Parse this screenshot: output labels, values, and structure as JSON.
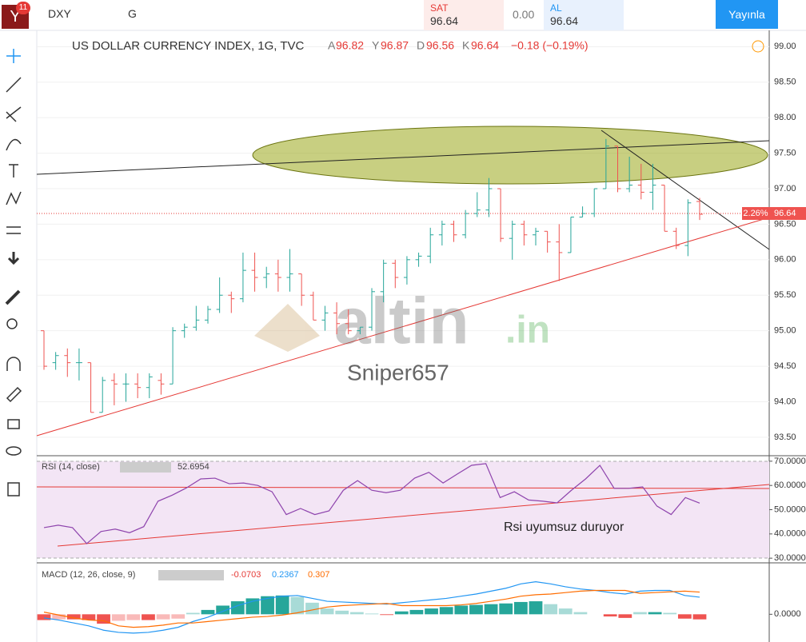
{
  "toolbar": {
    "badge": "11",
    "symbol": "DXY",
    "interval": "G",
    "sell_label": "SAT",
    "sell_price": "96.64",
    "spread": "0.00",
    "buy_label": "AL",
    "buy_price": "96.64",
    "publish": "Yayınla"
  },
  "legend": {
    "title": "US DOLLAR CURRENCY INDEX, 1G, TVC",
    "open_label": "A",
    "high_label": "Y",
    "low_label": "D",
    "close_label": "K",
    "change": "−0.18 (−0.19%)",
    "price_change_badge": "2.26%",
    "rsi_title": "RSI (14, close)",
    "macd_title": "MACD (12, 26, close, 9)"
  },
  "annotations": {
    "author": "Sniper657",
    "rsi_note": "Rsi uyumsuz duruyor",
    "watermark": "altin",
    "watermark_suffix": ".in"
  },
  "chart_data": [
    {
      "type": "ohlc",
      "up_color": "#26a69a",
      "down_color": "#ef5350",
      "ohlc": [
        [
          95.0,
          95.0,
          94.45,
          94.5
        ],
        [
          94.55,
          94.7,
          94.45,
          94.65
        ],
        [
          94.65,
          94.75,
          94.35,
          94.55
        ],
        [
          94.55,
          94.75,
          94.3,
          94.55
        ],
        [
          94.55,
          94.55,
          93.85,
          93.85
        ],
        [
          93.85,
          94.35,
          93.85,
          94.3
        ],
        [
          94.3,
          94.4,
          93.95,
          94.25
        ],
        [
          94.25,
          94.4,
          94.0,
          94.25
        ],
        [
          94.25,
          94.4,
          94.05,
          94.2
        ],
        [
          94.2,
          94.4,
          94.05,
          94.35
        ],
        [
          94.3,
          94.4,
          94.1,
          94.25
        ],
        [
          94.25,
          95.05,
          94.25,
          95.0
        ],
        [
          95.0,
          95.1,
          94.9,
          95.05
        ],
        [
          95.05,
          95.35,
          95.0,
          95.15
        ],
        [
          95.15,
          95.35,
          95.1,
          95.3
        ],
        [
          95.3,
          95.75,
          95.25,
          95.5
        ],
        [
          95.5,
          95.55,
          95.25,
          95.45
        ],
        [
          95.45,
          96.1,
          95.4,
          95.85
        ],
        [
          95.85,
          96.1,
          95.55,
          95.75
        ],
        [
          95.75,
          95.9,
          95.6,
          95.8
        ],
        [
          95.8,
          96.0,
          95.55,
          95.75
        ],
        [
          95.75,
          96.15,
          95.55,
          95.8
        ],
        [
          95.8,
          95.8,
          95.35,
          95.5
        ],
        [
          95.5,
          95.55,
          95.15,
          95.15
        ],
        [
          95.15,
          95.35,
          95.0,
          95.25
        ],
        [
          95.25,
          95.4,
          94.95,
          95.1
        ],
        [
          95.1,
          95.3,
          94.95,
          95.0
        ],
        [
          95.0,
          95.05,
          94.95,
          95.05
        ],
        [
          95.05,
          95.6,
          95.0,
          95.55
        ],
        [
          95.55,
          96.0,
          95.4,
          95.95
        ],
        [
          95.95,
          96.0,
          95.6,
          95.75
        ],
        [
          95.75,
          96.05,
          95.65,
          96.0
        ],
        [
          96.0,
          96.1,
          95.9,
          96.05
        ],
        [
          96.05,
          96.45,
          95.95,
          96.35
        ],
        [
          96.35,
          96.55,
          96.2,
          96.5
        ],
        [
          96.5,
          96.55,
          96.25,
          96.35
        ],
        [
          96.35,
          96.7,
          96.3,
          96.65
        ],
        [
          96.65,
          96.95,
          96.6,
          96.7
        ],
        [
          96.7,
          97.15,
          96.6,
          97.0
        ],
        [
          97.0,
          97.0,
          96.25,
          96.3
        ],
        [
          96.3,
          96.55,
          96.0,
          96.5
        ],
        [
          96.5,
          96.55,
          96.2,
          96.35
        ],
        [
          96.35,
          96.45,
          96.2,
          96.4
        ],
        [
          96.4,
          96.4,
          96.1,
          96.25
        ],
        [
          96.25,
          96.5,
          95.7,
          96.1
        ],
        [
          96.1,
          96.6,
          96.1,
          96.6
        ],
        [
          96.6,
          96.75,
          96.6,
          96.65
        ],
        [
          96.65,
          97.0,
          96.6,
          97.0
        ],
        [
          97.0,
          97.7,
          97.0,
          97.6
        ],
        [
          97.6,
          97.6,
          96.95,
          97.0
        ],
        [
          97.0,
          97.45,
          96.95,
          97.05
        ],
        [
          97.05,
          97.35,
          96.85,
          96.95
        ],
        [
          96.95,
          97.35,
          96.7,
          97.05
        ],
        [
          97.05,
          97.05,
          96.4,
          96.4
        ],
        [
          96.4,
          96.45,
          96.15,
          96.2
        ],
        [
          96.2,
          96.85,
          96.05,
          96.8
        ],
        [
          96.82,
          96.87,
          96.56,
          96.64
        ]
      ],
      "ylim": [
        93.24,
        99.15
      ],
      "yticks": [
        {
          "value": 93.5,
          "label": "93.50"
        },
        {
          "value": 94,
          "label": "94.00"
        },
        {
          "value": 94.5,
          "label": "94.50"
        },
        {
          "value": 95,
          "label": "95.00"
        },
        {
          "value": 95.5,
          "label": "95.50"
        },
        {
          "value": 96,
          "label": "96.00"
        },
        {
          "value": 96.5,
          "label": "96.50"
        },
        {
          "value": 97,
          "label": "97.00"
        },
        {
          "value": 97.5,
          "label": "97.50"
        },
        {
          "value": 98,
          "label": "98.00"
        },
        {
          "value": 98.5,
          "label": "98.50"
        },
        {
          "value": 99,
          "label": "99.00"
        }
      ],
      "grid": true
    },
    {
      "type": "line",
      "color": "#8e44ad",
      "values": [
        42.6,
        43.6,
        42.6,
        36,
        41,
        42,
        40.5,
        43,
        53.5,
        56,
        59,
        62.7,
        63,
        60.7,
        61,
        60,
        57.4,
        48,
        50.5,
        48,
        49.5,
        58,
        62,
        58,
        57,
        58,
        63,
        65.4,
        61,
        64.7,
        68.3,
        69,
        55,
        57.4,
        54,
        53.5,
        52.8,
        58,
        62.7,
        68.3,
        58.8,
        58.8,
        59.4,
        51.5,
        48,
        55,
        52.6954
      ],
      "ylim": [
        28.4,
        71.6
      ],
      "yticks": [
        {
          "value": 30,
          "label": "30.0000"
        },
        {
          "value": 40,
          "label": "40.0000"
        },
        {
          "value": 50,
          "label": "50.0000"
        },
        {
          "value": 60,
          "label": "60.0000"
        },
        {
          "value": 70,
          "label": "70.0000"
        }
      ]
    },
    {
      "type": "macd",
      "ylim": [
        -0.35,
        0.7
      ],
      "yticks": [
        {
          "value": 0,
          "label": "0.0000"
        }
      ],
      "series": [
        {
          "type": "histogram",
          "color": "#26a69a",
          "negative_color": "#ef5350",
          "values": [
            -0.08,
            -0.07,
            -0.07,
            -0.08,
            -0.13,
            -0.09,
            -0.08,
            -0.08,
            -0.07,
            -0.06,
            0.02,
            0.06,
            0.12,
            0.18,
            0.22,
            0.25,
            0.26,
            0.24,
            0.16,
            0.08,
            0.05,
            0.03,
            0.01,
            -0.01,
            0.04,
            0.06,
            0.08,
            0.1,
            0.12,
            0.13,
            0.14,
            0.15,
            0.17,
            0.18,
            0.14,
            0.08,
            0.03,
            0.0,
            -0.03,
            -0.05,
            0.03,
            0.03,
            0.02,
            -0.06,
            -0.0703
          ]
        },
        {
          "type": "line",
          "color": "#2196f3",
          "values": [
            -0.05,
            -0.08,
            -0.12,
            -0.16,
            -0.22,
            -0.25,
            -0.26,
            -0.25,
            -0.22,
            -0.18,
            -0.1,
            -0.04,
            0.04,
            0.12,
            0.18,
            0.22,
            0.25,
            0.26,
            0.22,
            0.18,
            0.17,
            0.16,
            0.15,
            0.14,
            0.16,
            0.18,
            0.2,
            0.22,
            0.25,
            0.28,
            0.32,
            0.36,
            0.42,
            0.45,
            0.42,
            0.38,
            0.35,
            0.33,
            0.3,
            0.28,
            0.32,
            0.33,
            0.33,
            0.26,
            0.2367
          ]
        },
        {
          "type": "line",
          "color": "#ff6d00",
          "values": [
            0.03,
            -0.01,
            -0.05,
            -0.08,
            -0.09,
            -0.16,
            -0.18,
            -0.17,
            -0.15,
            -0.12,
            -0.12,
            -0.1,
            -0.08,
            -0.06,
            -0.04,
            -0.03,
            -0.01,
            0.02,
            0.06,
            0.1,
            0.12,
            0.13,
            0.14,
            0.15,
            0.12,
            0.12,
            0.12,
            0.12,
            0.13,
            0.15,
            0.18,
            0.21,
            0.25,
            0.27,
            0.28,
            0.3,
            0.32,
            0.33,
            0.33,
            0.33,
            0.29,
            0.3,
            0.31,
            0.32,
            0.307
          ]
        }
      ]
    }
  ]
}
